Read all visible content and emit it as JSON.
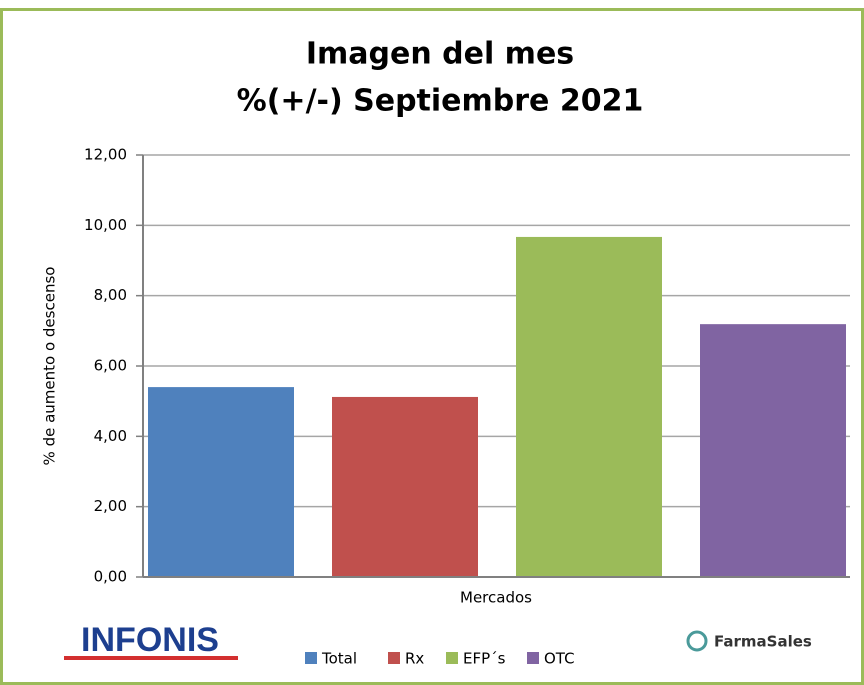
{
  "chart_data": {
    "type": "bar",
    "title": "Imagen del mes",
    "subtitle": "%(+/-) Septiembre 2021",
    "x_label": "Mercados",
    "y_label": "% de aumento o descenso",
    "categories": [
      "Total",
      "Rx",
      "EFP´s",
      "OTC"
    ],
    "values": [
      5.4,
      5.12,
      9.67,
      7.19
    ],
    "colors": [
      "#4f81bd",
      "#c0504d",
      "#9bbb59",
      "#8064a2"
    ],
    "ylim": [
      0,
      12
    ],
    "yticks": [
      {
        "value": 0,
        "label": "0,00"
      },
      {
        "value": 2,
        "label": "2,00"
      },
      {
        "value": 4,
        "label": "4,00"
      },
      {
        "value": 6,
        "label": "6,00"
      },
      {
        "value": 8,
        "label": "8,00"
      },
      {
        "value": 10,
        "label": "10,00"
      },
      {
        "value": 12,
        "label": "12,00"
      }
    ],
    "grid": true,
    "legend": "bottom",
    "annotations": [
      "INFONIS",
      "FarmaSales"
    ]
  }
}
